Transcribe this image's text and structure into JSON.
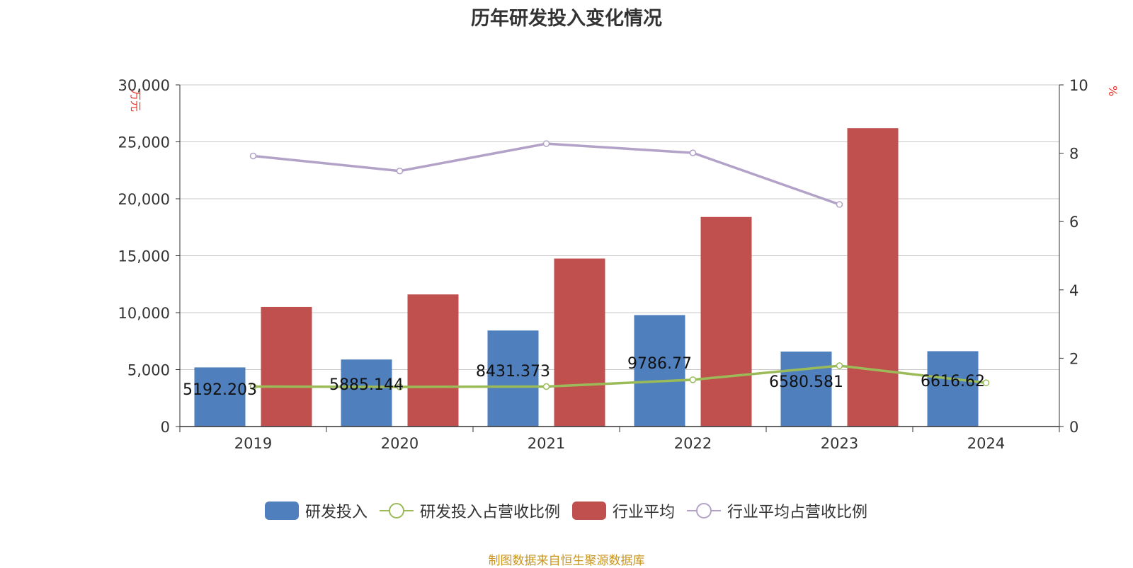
{
  "chart_data": {
    "type": "bar",
    "title": "历年研发投入变化情况",
    "categories": [
      "2019",
      "2020",
      "2021",
      "2022",
      "2023",
      "2024"
    ],
    "y_left": {
      "unit": "万元",
      "lim": [
        0,
        30000
      ],
      "ticks": [
        "0",
        "5,000",
        "10,000",
        "15,000",
        "20,000",
        "25,000",
        "30,000"
      ]
    },
    "y_right": {
      "unit": "%",
      "lim": [
        0,
        10
      ],
      "ticks": [
        "0",
        "2",
        "4",
        "6",
        "8",
        "10"
      ]
    },
    "series": [
      {
        "name": "研发投入",
        "kind": "bar",
        "axis": "left",
        "color": "#4f7fbd",
        "values": [
          5192.203,
          5885.144,
          8431.373,
          9786.77,
          6580.581,
          6616.62
        ],
        "labels": [
          "5192.203",
          "5885.144",
          "8431.373",
          "9786.77",
          "6580.581",
          "6616.62"
        ]
      },
      {
        "name": "研发投入占营收比例",
        "kind": "line",
        "axis": "right",
        "color": "#9bbb59",
        "values": [
          1.17,
          1.16,
          1.17,
          1.37,
          1.78,
          1.28
        ]
      },
      {
        "name": "行业平均",
        "kind": "bar",
        "axis": "left",
        "color": "#c0504d",
        "values": [
          10500,
          11600,
          14750,
          18400,
          26200,
          null
        ]
      },
      {
        "name": "行业平均占营收比例",
        "kind": "line",
        "axis": "right",
        "color": "#b3a2c7",
        "values": [
          7.92,
          7.48,
          8.28,
          8.01,
          6.5,
          null
        ]
      }
    ],
    "grid": true,
    "legend_position": "bottom"
  },
  "source_note": "制图数据来自恒生聚源数据库"
}
